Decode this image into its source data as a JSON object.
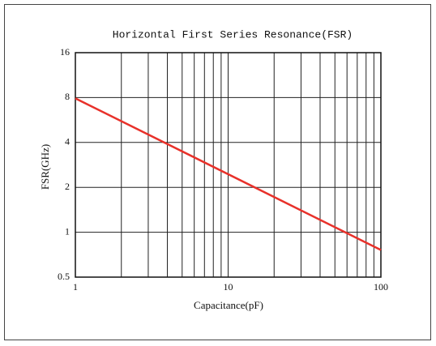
{
  "chart_data": {
    "type": "line",
    "title": "Horizontal First Series Resonance(FSR)",
    "x_label": "Capacitance(pF)",
    "y_label": "FSR(GHz)",
    "x": [
      1,
      100
    ],
    "series": [
      {
        "color": "#e8312a",
        "values": [
          7.9,
          0.76
        ]
      }
    ],
    "xlim": [
      1,
      100
    ],
    "xticks": [
      1,
      10,
      100
    ],
    "xscale": "log",
    "ylim": [
      0.5,
      16
    ],
    "yticks": [
      0.5,
      1,
      2,
      4,
      8,
      16
    ],
    "yscale": "log",
    "grid": true
  }
}
